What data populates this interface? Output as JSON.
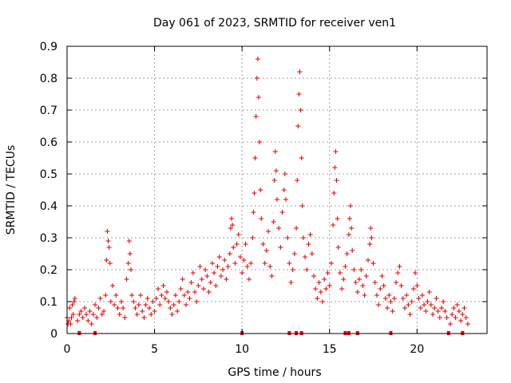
{
  "chart_data": {
    "type": "scatter",
    "title": "Day 061 of 2023, SRMTID for receiver ven1",
    "xlabel": "GPS time / hours",
    "ylabel": "SRMTID / TECUs",
    "xlim": [
      0,
      24
    ],
    "ylim": [
      0,
      0.9
    ],
    "xticks": [
      0,
      5,
      10,
      15,
      20
    ],
    "yticks": [
      0,
      0.1,
      0.2,
      0.3,
      0.4,
      0.5,
      0.6,
      0.7,
      0.8,
      0.9
    ],
    "xtick_labels": [
      "0",
      "5",
      "10",
      "15",
      "20"
    ],
    "ytick_labels": [
      "0",
      "0.1",
      "0.2",
      "0.3",
      "0.4",
      "0.5",
      "0.6",
      "0.7",
      "0.8",
      "0.9"
    ],
    "grid": true,
    "marker": "+",
    "color": "#e00000",
    "series": [
      {
        "name": "SRMTID",
        "points": [
          [
            0.0,
            0.05
          ],
          [
            0.05,
            0.03
          ],
          [
            0.1,
            0.04
          ],
          [
            0.15,
            0.08
          ],
          [
            0.2,
            0.03
          ],
          [
            0.25,
            0.05
          ],
          [
            0.3,
            0.09
          ],
          [
            0.35,
            0.06
          ],
          [
            0.4,
            0.1
          ],
          [
            0.45,
            0.11
          ],
          [
            0.6,
            0.04
          ],
          [
            0.7,
            0.06
          ],
          [
            0.8,
            0.07
          ],
          [
            0.9,
            0.05
          ],
          [
            1.0,
            0.08
          ],
          [
            1.1,
            0.06
          ],
          [
            1.2,
            0.04
          ],
          [
            1.3,
            0.07
          ],
          [
            1.4,
            0.03
          ],
          [
            1.5,
            0.06
          ],
          [
            1.6,
            0.09
          ],
          [
            1.7,
            0.05
          ],
          [
            1.8,
            0.08
          ],
          [
            1.9,
            0.11
          ],
          [
            2.0,
            0.06
          ],
          [
            2.1,
            0.07
          ],
          [
            2.2,
            0.12
          ],
          [
            2.25,
            0.23
          ],
          [
            2.3,
            0.32
          ],
          [
            2.35,
            0.29
          ],
          [
            2.4,
            0.27
          ],
          [
            2.45,
            0.22
          ],
          [
            2.5,
            0.1
          ],
          [
            2.6,
            0.15
          ],
          [
            2.7,
            0.09
          ],
          [
            2.8,
            0.12
          ],
          [
            2.9,
            0.08
          ],
          [
            3.0,
            0.06
          ],
          [
            3.1,
            0.1
          ],
          [
            3.2,
            0.08
          ],
          [
            3.3,
            0.05
          ],
          [
            3.4,
            0.17
          ],
          [
            3.5,
            0.22
          ],
          [
            3.55,
            0.29
          ],
          [
            3.6,
            0.25
          ],
          [
            3.65,
            0.2
          ],
          [
            3.7,
            0.12
          ],
          [
            3.8,
            0.1
          ],
          [
            3.9,
            0.08
          ],
          [
            4.0,
            0.06
          ],
          [
            4.1,
            0.09
          ],
          [
            4.2,
            0.12
          ],
          [
            4.3,
            0.07
          ],
          [
            4.4,
            0.05
          ],
          [
            4.5,
            0.09
          ],
          [
            4.6,
            0.11
          ],
          [
            4.7,
            0.08
          ],
          [
            4.8,
            0.06
          ],
          [
            4.9,
            0.1
          ],
          [
            5.0,
            0.07
          ],
          [
            5.1,
            0.11
          ],
          [
            5.2,
            0.14
          ],
          [
            5.3,
            0.09
          ],
          [
            5.4,
            0.12
          ],
          [
            5.5,
            0.15
          ],
          [
            5.6,
            0.11
          ],
          [
            5.7,
            0.13
          ],
          [
            5.8,
            0.1
          ],
          [
            5.9,
            0.08
          ],
          [
            6.0,
            0.06
          ],
          [
            6.1,
            0.09
          ],
          [
            6.2,
            0.12
          ],
          [
            6.3,
            0.07
          ],
          [
            6.4,
            0.1
          ],
          [
            6.5,
            0.14
          ],
          [
            6.6,
            0.17
          ],
          [
            6.7,
            0.12
          ],
          [
            6.8,
            0.09
          ],
          [
            6.9,
            0.13
          ],
          [
            7.0,
            0.11
          ],
          [
            7.1,
            0.16
          ],
          [
            7.2,
            0.19
          ],
          [
            7.3,
            0.13
          ],
          [
            7.4,
            0.1
          ],
          [
            7.5,
            0.15
          ],
          [
            7.6,
            0.21
          ],
          [
            7.7,
            0.17
          ],
          [
            7.8,
            0.14
          ],
          [
            7.9,
            0.2
          ],
          [
            8.0,
            0.18
          ],
          [
            8.1,
            0.13
          ],
          [
            8.2,
            0.16
          ],
          [
            8.3,
            0.22
          ],
          [
            8.4,
            0.19
          ],
          [
            8.5,
            0.15
          ],
          [
            8.6,
            0.21
          ],
          [
            8.7,
            0.24
          ],
          [
            8.8,
            0.18
          ],
          [
            8.9,
            0.2
          ],
          [
            9.0,
            0.23
          ],
          [
            9.1,
            0.17
          ],
          [
            9.2,
            0.21
          ],
          [
            9.3,
            0.25
          ],
          [
            9.35,
            0.33
          ],
          [
            9.4,
            0.36
          ],
          [
            9.45,
            0.34
          ],
          [
            9.5,
            0.27
          ],
          [
            9.6,
            0.22
          ],
          [
            9.7,
            0.28
          ],
          [
            9.8,
            0.31
          ],
          [
            9.9,
            0.24
          ],
          [
            10.0,
            0.19
          ],
          [
            10.1,
            0.23
          ],
          [
            10.2,
            0.28
          ],
          [
            10.3,
            0.21
          ],
          [
            10.4,
            0.17
          ],
          [
            10.5,
            0.22
          ],
          [
            10.6,
            0.3
          ],
          [
            10.65,
            0.38
          ],
          [
            10.7,
            0.44
          ],
          [
            10.75,
            0.55
          ],
          [
            10.8,
            0.68
          ],
          [
            10.85,
            0.8
          ],
          [
            10.9,
            0.86
          ],
          [
            10.95,
            0.74
          ],
          [
            11.0,
            0.6
          ],
          [
            11.05,
            0.45
          ],
          [
            11.1,
            0.36
          ],
          [
            11.2,
            0.28
          ],
          [
            11.3,
            0.22
          ],
          [
            11.4,
            0.26
          ],
          [
            11.5,
            0.32
          ],
          [
            11.6,
            0.21
          ],
          [
            11.7,
            0.18
          ],
          [
            11.8,
            0.35
          ],
          [
            11.85,
            0.48
          ],
          [
            11.9,
            0.57
          ],
          [
            11.95,
            0.51
          ],
          [
            12.0,
            0.42
          ],
          [
            12.1,
            0.33
          ],
          [
            12.2,
            0.27
          ],
          [
            12.3,
            0.38
          ],
          [
            12.4,
            0.45
          ],
          [
            12.45,
            0.5
          ],
          [
            12.5,
            0.42
          ],
          [
            12.6,
            0.3
          ],
          [
            12.7,
            0.22
          ],
          [
            12.8,
            0.16
          ],
          [
            12.9,
            0.2
          ],
          [
            13.0,
            0.25
          ],
          [
            13.1,
            0.33
          ],
          [
            13.15,
            0.48
          ],
          [
            13.2,
            0.65
          ],
          [
            13.25,
            0.75
          ],
          [
            13.3,
            0.82
          ],
          [
            13.35,
            0.7
          ],
          [
            13.4,
            0.55
          ],
          [
            13.45,
            0.4
          ],
          [
            13.5,
            0.3
          ],
          [
            13.6,
            0.24
          ],
          [
            13.7,
            0.2
          ],
          [
            13.8,
            0.28
          ],
          [
            13.9,
            0.31
          ],
          [
            14.0,
            0.25
          ],
          [
            14.1,
            0.18
          ],
          [
            14.2,
            0.14
          ],
          [
            14.3,
            0.11
          ],
          [
            14.4,
            0.16
          ],
          [
            14.5,
            0.13
          ],
          [
            14.6,
            0.1
          ],
          [
            14.7,
            0.17
          ],
          [
            14.8,
            0.14
          ],
          [
            14.9,
            0.19
          ],
          [
            15.0,
            0.15
          ],
          [
            15.1,
            0.22
          ],
          [
            15.2,
            0.34
          ],
          [
            15.25,
            0.44
          ],
          [
            15.3,
            0.52
          ],
          [
            15.35,
            0.57
          ],
          [
            15.4,
            0.48
          ],
          [
            15.45,
            0.36
          ],
          [
            15.5,
            0.27
          ],
          [
            15.6,
            0.19
          ],
          [
            15.7,
            0.14
          ],
          [
            15.8,
            0.17
          ],
          [
            15.9,
            0.21
          ],
          [
            16.0,
            0.25
          ],
          [
            16.1,
            0.31
          ],
          [
            16.15,
            0.36
          ],
          [
            16.2,
            0.4
          ],
          [
            16.25,
            0.33
          ],
          [
            16.3,
            0.26
          ],
          [
            16.4,
            0.2
          ],
          [
            16.5,
            0.16
          ],
          [
            16.6,
            0.13
          ],
          [
            16.7,
            0.17
          ],
          [
            16.8,
            0.2
          ],
          [
            16.9,
            0.15
          ],
          [
            17.0,
            0.12
          ],
          [
            17.1,
            0.18
          ],
          [
            17.2,
            0.23
          ],
          [
            17.3,
            0.28
          ],
          [
            17.35,
            0.33
          ],
          [
            17.4,
            0.3
          ],
          [
            17.5,
            0.22
          ],
          [
            17.6,
            0.16
          ],
          [
            17.7,
            0.12
          ],
          [
            17.8,
            0.09
          ],
          [
            17.9,
            0.14
          ],
          [
            18.0,
            0.18
          ],
          [
            18.1,
            0.15
          ],
          [
            18.2,
            0.11
          ],
          [
            18.3,
            0.08
          ],
          [
            18.4,
            0.12
          ],
          [
            18.5,
            0.1
          ],
          [
            18.6,
            0.07
          ],
          [
            18.7,
            0.11
          ],
          [
            18.8,
            0.16
          ],
          [
            18.9,
            0.19
          ],
          [
            19.0,
            0.21
          ],
          [
            19.1,
            0.15
          ],
          [
            19.2,
            0.11
          ],
          [
            19.3,
            0.08
          ],
          [
            19.4,
            0.12
          ],
          [
            19.5,
            0.09
          ],
          [
            19.6,
            0.06
          ],
          [
            19.7,
            0.1
          ],
          [
            19.8,
            0.14
          ],
          [
            19.9,
            0.19
          ],
          [
            20.0,
            0.15
          ],
          [
            20.1,
            0.11
          ],
          [
            20.2,
            0.08
          ],
          [
            20.3,
            0.12
          ],
          [
            20.4,
            0.09
          ],
          [
            20.5,
            0.07
          ],
          [
            20.6,
            0.1
          ],
          [
            20.7,
            0.13
          ],
          [
            20.8,
            0.09
          ],
          [
            20.9,
            0.06
          ],
          [
            21.0,
            0.08
          ],
          [
            21.1,
            0.11
          ],
          [
            21.2,
            0.07
          ],
          [
            21.3,
            0.05
          ],
          [
            21.4,
            0.08
          ],
          [
            21.5,
            0.1
          ],
          [
            21.6,
            0.07
          ],
          [
            21.7,
            0.05
          ],
          [
            21.9,
            0.03
          ],
          [
            22.0,
            0.06
          ],
          [
            22.1,
            0.08
          ],
          [
            22.2,
            0.05
          ],
          [
            22.3,
            0.09
          ],
          [
            22.4,
            0.07
          ],
          [
            22.5,
            0.04
          ],
          [
            22.6,
            0.06
          ],
          [
            22.7,
            0.08
          ],
          [
            22.8,
            0.05
          ],
          [
            22.9,
            0.03
          ]
        ]
      }
    ],
    "zero_markers_x": [
      0.7,
      1.6,
      10.0,
      12.7,
      13.1,
      13.4,
      15.9,
      16.1,
      16.6,
      18.5,
      21.8,
      22.6
    ]
  }
}
